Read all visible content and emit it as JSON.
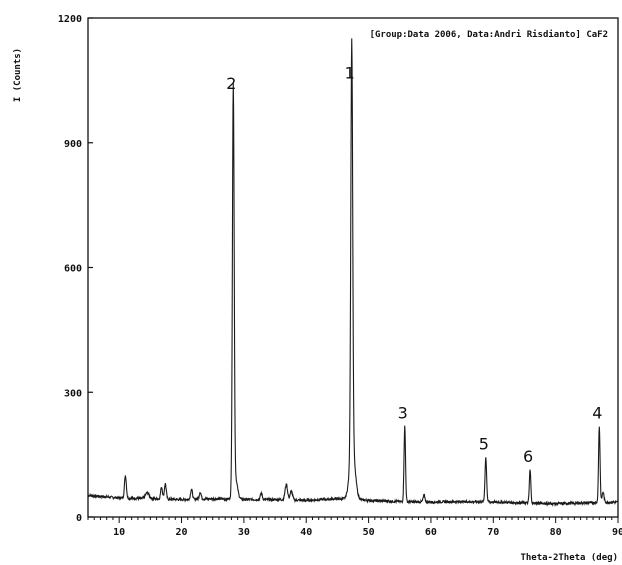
{
  "chart_data": {
    "type": "line",
    "header": "[Group:Data 2006, Data:Andri Risdianto] CaF2",
    "xlabel": "Theta-2Theta (deg)",
    "ylabel": "I (Counts)",
    "xlim": [
      5,
      90
    ],
    "ylim": [
      0,
      1200
    ],
    "x_ticks": [
      10,
      20,
      30,
      40,
      50,
      60,
      70,
      80,
      90
    ],
    "y_ticks": [
      0,
      300,
      600,
      900,
      1200
    ],
    "grid": false,
    "baseline": [
      [
        5,
        52
      ],
      [
        10,
        46
      ],
      [
        15,
        44
      ],
      [
        20,
        42
      ],
      [
        25,
        44
      ],
      [
        30,
        42
      ],
      [
        35,
        42
      ],
      [
        40,
        40
      ],
      [
        45,
        44
      ],
      [
        50,
        40
      ],
      [
        55,
        37
      ],
      [
        60,
        36
      ],
      [
        65,
        37
      ],
      [
        70,
        36
      ],
      [
        75,
        34
      ],
      [
        80,
        32
      ],
      [
        85,
        34
      ],
      [
        90,
        36
      ]
    ],
    "peaks": [
      {
        "x": 11.0,
        "y": 100,
        "w": 0.15
      },
      {
        "x": 14.5,
        "y": 58,
        "w": 0.3
      },
      {
        "x": 16.8,
        "y": 72,
        "w": 0.15
      },
      {
        "x": 17.4,
        "y": 80,
        "w": 0.15
      },
      {
        "x": 21.6,
        "y": 67,
        "w": 0.15
      },
      {
        "x": 23.0,
        "y": 60,
        "w": 0.15
      },
      {
        "x": 28.3,
        "y": 1010,
        "w": 0.14
      },
      {
        "x": 28.6,
        "y": 95,
        "w": 0.35
      },
      {
        "x": 32.8,
        "y": 58,
        "w": 0.15
      },
      {
        "x": 36.8,
        "y": 78,
        "w": 0.2
      },
      {
        "x": 37.6,
        "y": 62,
        "w": 0.2
      },
      {
        "x": 47.3,
        "y": 1035,
        "w": 0.15
      },
      {
        "x": 47.4,
        "y": 160,
        "w": 0.45
      },
      {
        "x": 55.8,
        "y": 218,
        "w": 0.12
      },
      {
        "x": 58.9,
        "y": 52,
        "w": 0.15
      },
      {
        "x": 68.8,
        "y": 143,
        "w": 0.13
      },
      {
        "x": 75.9,
        "y": 113,
        "w": 0.12
      },
      {
        "x": 87.0,
        "y": 218,
        "w": 0.12
      },
      {
        "x": 87.6,
        "y": 60,
        "w": 0.15
      }
    ],
    "annotations": [
      {
        "label": "1",
        "x": 47.3,
        "y": 1035
      },
      {
        "label": "2",
        "x": 28.3,
        "y": 1010
      },
      {
        "label": "3",
        "x": 55.8,
        "y": 218
      },
      {
        "label": "4",
        "x": 87.0,
        "y": 218
      },
      {
        "label": "5",
        "x": 68.8,
        "y": 143
      },
      {
        "label": "6",
        "x": 75.9,
        "y": 113
      }
    ],
    "line_color": "#1a1a1a"
  }
}
